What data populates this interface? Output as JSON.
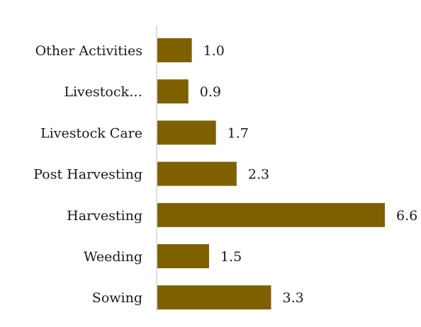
{
  "chart_data": {
    "type": "bar",
    "orientation": "horizontal",
    "categories": [
      "Other Activities",
      "Livestock…",
      "Livestock Care",
      "Post Harvesting",
      "Harvesting",
      "Weeding",
      "Sowing"
    ],
    "values": [
      1.0,
      0.9,
      1.7,
      2.3,
      6.6,
      1.5,
      3.3
    ],
    "value_labels": [
      "1.0",
      "0.9",
      "1.7",
      "2.3",
      "6.6",
      "1.5",
      "3.3"
    ],
    "xlim": [
      0,
      6.6
    ],
    "grid": false,
    "legend": "none",
    "bar_color": "#7f6000"
  }
}
